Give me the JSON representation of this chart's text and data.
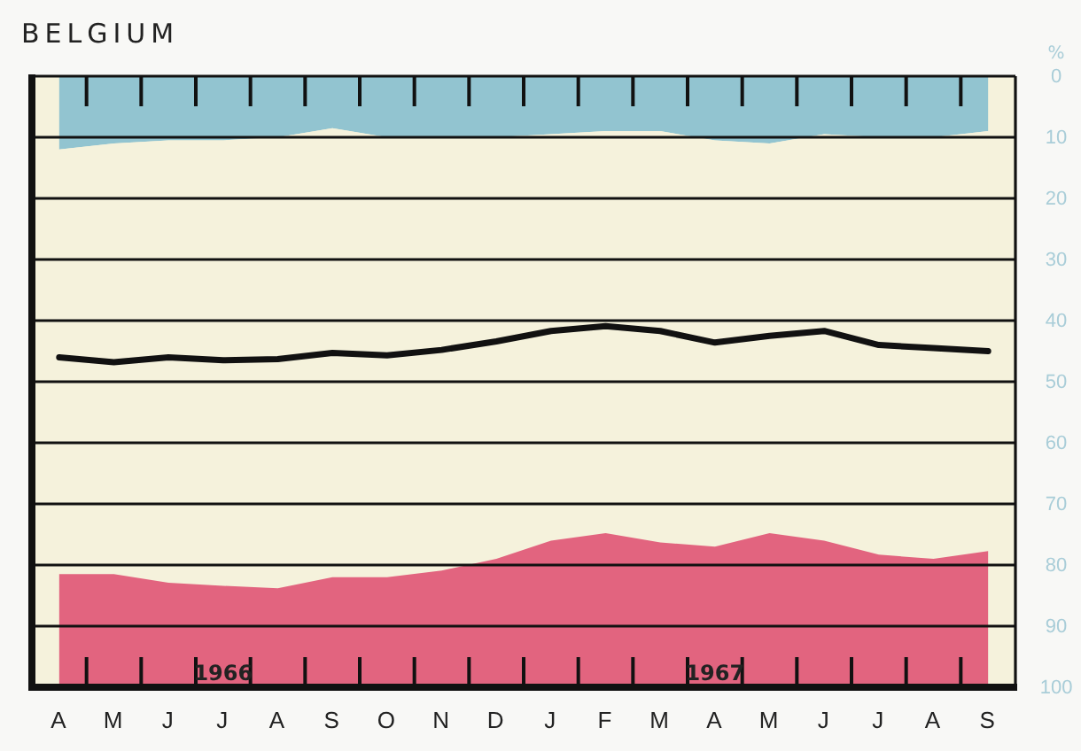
{
  "chart_data": {
    "type": "area",
    "title": "BELGIUM",
    "ylabel": "%",
    "categories": [
      "A",
      "M",
      "J",
      "J",
      "A",
      "S",
      "O",
      "N",
      "D",
      "J",
      "F",
      "M",
      "A",
      "M",
      "J",
      "J",
      "A",
      "S"
    ],
    "stacked": true,
    "ylim": [
      100,
      0
    ],
    "yticks": [
      0,
      10,
      20,
      30,
      40,
      50,
      60,
      70,
      80,
      90,
      100
    ],
    "grid": "y",
    "annotations": [
      "1966",
      "1967"
    ],
    "series": [
      {
        "color": "#92c4d0",
        "values": [
          12,
          11,
          10.5,
          10.5,
          10,
          8.5,
          10,
          10,
          10,
          9.5,
          9,
          9,
          10.5,
          11,
          9.5,
          10,
          10,
          9
        ]
      },
      {
        "color": "#f5f2dc",
        "values": [
          69.5,
          70.5,
          72.4,
          72.9,
          73.8,
          73.5,
          72,
          70.9,
          69,
          66.5,
          65.8,
          67.3,
          66.5,
          63.8,
          66.5,
          68.3,
          69,
          68.7
        ]
      },
      {
        "color": "#e2647f",
        "values": [
          18.5,
          18.5,
          17.1,
          16.6,
          16.2,
          18,
          18,
          19.1,
          21,
          24,
          25.2,
          23.7,
          23,
          25.2,
          24,
          21.7,
          21,
          22.3
        ]
      },
      {
        "type": "line",
        "color": "#111111",
        "values": [
          46,
          46.8,
          46,
          46.5,
          46.3,
          45.3,
          45.7,
          44.8,
          43.4,
          41.7,
          40.9,
          41.7,
          43.6,
          42.5,
          41.7,
          44,
          44.5,
          45
        ]
      }
    ]
  }
}
